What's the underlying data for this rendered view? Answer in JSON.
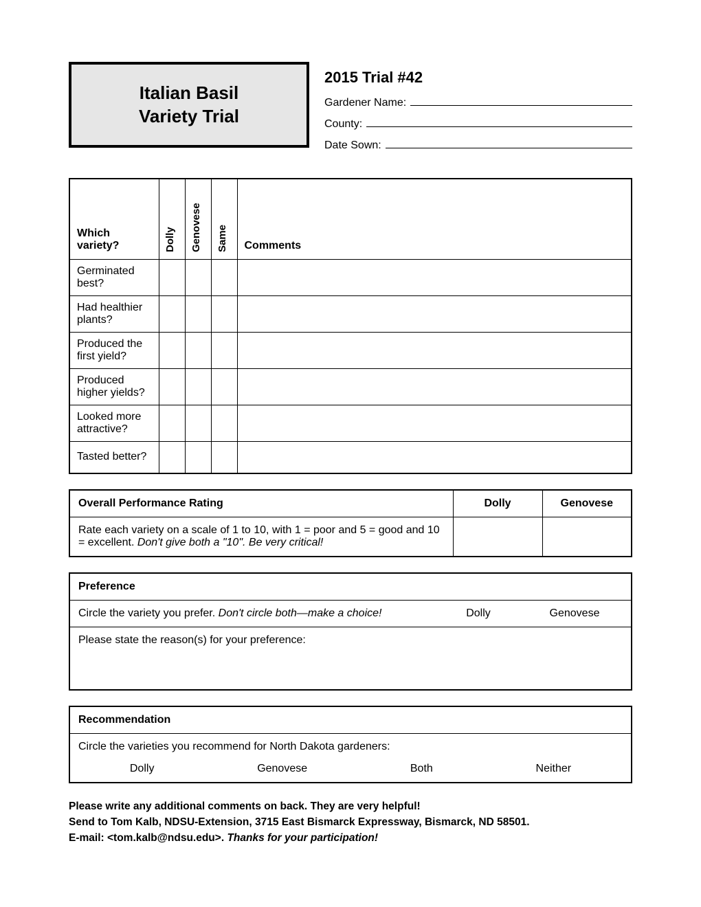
{
  "colors": {
    "title_bg": "#e6e6e6",
    "border": "#000000",
    "text": "#000000",
    "bg": "#ffffff"
  },
  "title_box": {
    "line1": "Italian Basil",
    "line2": "Variety Trial"
  },
  "meta": {
    "trial_title": "2015 Trial #42",
    "fields": [
      {
        "label": "Gardener Name:"
      },
      {
        "label": "County:"
      },
      {
        "label": "Date Sown:"
      }
    ]
  },
  "comparison": {
    "header_question": "Which variety?",
    "col_variety1": "Dolly",
    "col_variety2": "Genovese",
    "col_same": "Same",
    "col_comments": "Comments",
    "rows": [
      "Germinated best?",
      "Had healthier plants?",
      "Produced the first yield?",
      "Produced higher yields?",
      "Looked more attractive?",
      "Tasted better?"
    ]
  },
  "rating": {
    "header": "Overall Performance Rating",
    "col1": "Dolly",
    "col2": "Genovese",
    "instruction_plain": "Rate each variety on a scale of 1 to 10, with 1 = poor and 5 = good and 10 = excellent. ",
    "instruction_italic": "Don't give both a \"10\". Be very critical!"
  },
  "preference": {
    "header": "Preference",
    "circle_plain": "Circle the variety you prefer. ",
    "circle_italic": "Don't circle both—make a choice!",
    "opt1": "Dolly",
    "opt2": "Genovese",
    "reason_label": "Please state the reason(s) for your preference:"
  },
  "recommendation": {
    "header": "Recommendation",
    "instruction": "Circle the varieties you recommend for North Dakota gardeners:",
    "options": [
      "Dolly",
      "Genovese",
      "Both",
      "Neither"
    ]
  },
  "footer": {
    "line1": "Please write any additional comments on back. They are very helpful!",
    "line2": "Send to Tom Kalb, NDSU-Extension, 3715 East Bismarck Expressway, Bismarck, ND 58501.",
    "line3_plain": "E-mail: <tom.kalb@ndsu.edu>. ",
    "line3_italic": "Thanks for your participation!"
  }
}
